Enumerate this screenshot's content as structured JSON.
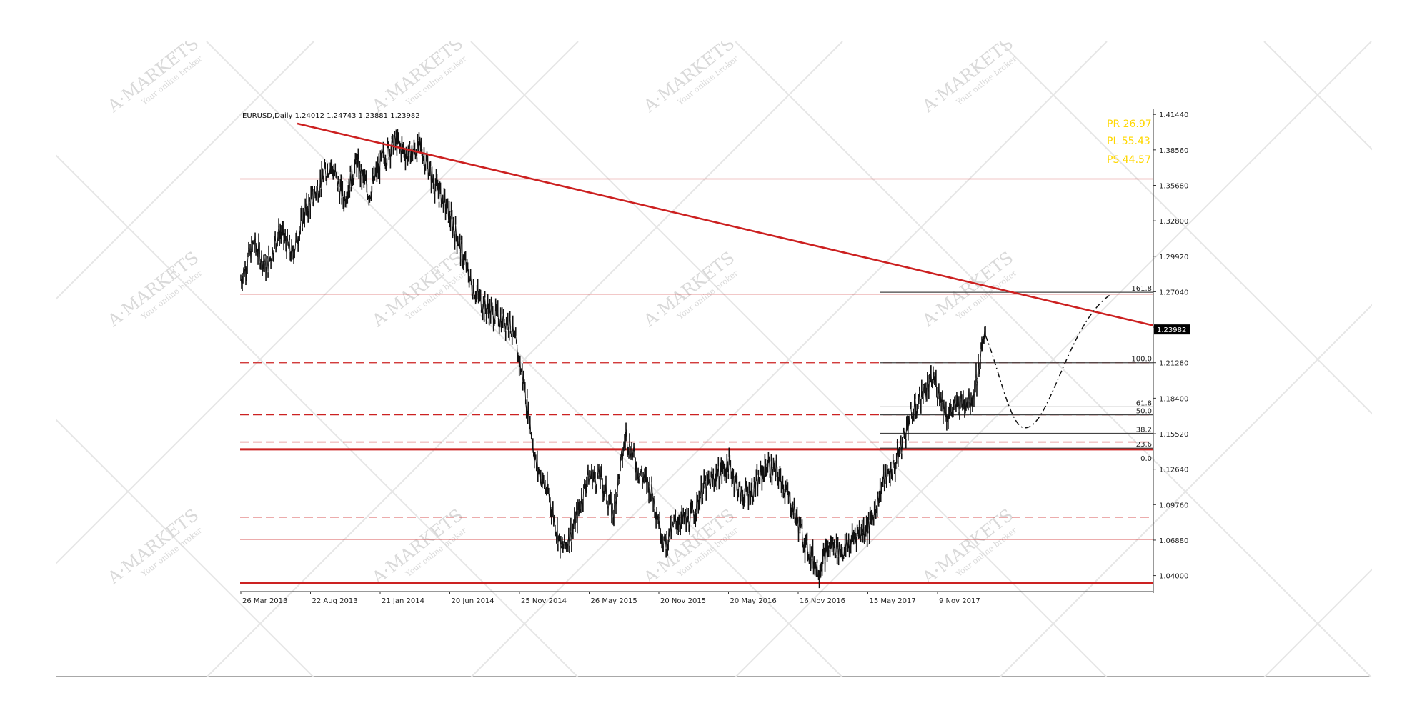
{
  "header": {
    "symbol_info": "EURUSD,Daily  1.24012  1.24743  1.23881  1.23982"
  },
  "watermark": {
    "brand": "A·MARKETS",
    "tagline": "Your online broker"
  },
  "stats": {
    "pr": "PR 26.97",
    "pl": "PL 55.43",
    "ps": "PS 44.57",
    "color": "#ffd700"
  },
  "colors": {
    "level_line": "#cc2222",
    "trendline": "#cc2020",
    "price": "#111111",
    "fib_line": "#444444"
  },
  "chart_data": {
    "type": "candlestick",
    "symbol": "EURUSD",
    "timeframe": "Daily",
    "ohlc_last": {
      "open": 1.24012,
      "high": 1.24743,
      "low": 1.23881,
      "close": 1.23982
    },
    "x_tick_labels": [
      "26 Mar 2013",
      "22 Aug 2013",
      "21 Jan 2014",
      "20 Jun 2014",
      "25 Nov 2014",
      "26 May 2015",
      "20 Nov 2015",
      "20 May 2016",
      "16 Nov 2016",
      "15 May 2017",
      "9 Nov 2017"
    ],
    "y_ticks": [
      1.4144,
      1.3856,
      1.3568,
      1.328,
      1.2992,
      1.2704,
      1.2416,
      1.2128,
      1.184,
      1.1552,
      1.1264,
      1.0976,
      1.0688,
      1.04
    ],
    "y_tick_labels": [
      "1.41440",
      "1.38560",
      "1.35680",
      "1.32800",
      "1.29920",
      "1.27040",
      "1.24160",
      "1.21280",
      "1.18400",
      "1.15520",
      "1.12640",
      "1.09760",
      "1.06880",
      "1.04000"
    ],
    "ylim": [
      1.027,
      1.418
    ],
    "current_price_label": "1.23982",
    "current_price": 1.23982,
    "price_path": [
      [
        "26 Mar 2013",
        1.28
      ],
      [
        "Apr 2013",
        1.31
      ],
      [
        "May 2013",
        1.29
      ],
      [
        "Jun 2013",
        1.32
      ],
      [
        "Jul 2013",
        1.3
      ],
      [
        "22 Aug 2013",
        1.335
      ],
      [
        "Sep 2013",
        1.355
      ],
      [
        "Oct 2013",
        1.375
      ],
      [
        "Nov 2013",
        1.345
      ],
      [
        "Dec 2013",
        1.375
      ],
      [
        "21 Jan 2014",
        1.35
      ],
      [
        "Feb 2014",
        1.378
      ],
      [
        "Mar 2014",
        1.392
      ],
      [
        "Apr 2014",
        1.382
      ],
      [
        "May 2014",
        1.388
      ],
      [
        "20 Jun 2014",
        1.36
      ],
      [
        "Aug 2014",
        1.34
      ],
      [
        "Sep 2014",
        1.31
      ],
      [
        "Oct 2014",
        1.275
      ],
      [
        "Oct 2014",
        1.258
      ],
      [
        "Nov 2014",
        1.25
      ],
      [
        "25 Nov 2014",
        1.245
      ],
      [
        "Jan 2015",
        1.2
      ],
      [
        "Feb 2015",
        1.13
      ],
      [
        "Mar 2015",
        1.105
      ],
      [
        "Mar 2015",
        1.06
      ],
      [
        "Apr 2015",
        1.08
      ],
      [
        "26 May 2015",
        1.12
      ],
      [
        "Jun 2015",
        1.12
      ],
      [
        "Jul 2015",
        1.09
      ],
      [
        "Aug 2015",
        1.155
      ],
      [
        "Sep 2015",
        1.125
      ],
      [
        "Oct 2015",
        1.11
      ],
      [
        "20 Nov 2015",
        1.065
      ],
      [
        "Dec 2015",
        1.085
      ],
      [
        "Jan 2016",
        1.085
      ],
      [
        "Feb 2016",
        1.11
      ],
      [
        "Mar 2016",
        1.12
      ],
      [
        "20 May 2016",
        1.13
      ],
      [
        "Jun 2016",
        1.105
      ],
      [
        "Jul 2016",
        1.11
      ],
      [
        "Aug 2016",
        1.13
      ],
      [
        "Sep 2016",
        1.12
      ],
      [
        "Oct 2016",
        1.095
      ],
      [
        "16 Nov 2016",
        1.065
      ],
      [
        "Dec 2016",
        1.045
      ],
      [
        "Jan 2017",
        1.065
      ],
      [
        "Feb 2017",
        1.06
      ],
      [
        "Mar 2017",
        1.075
      ],
      [
        "Apr 2017",
        1.08
      ],
      [
        "15 May 2017",
        1.115
      ],
      [
        "Jun 2017",
        1.13
      ],
      [
        "Jul 2017",
        1.165
      ],
      [
        "Aug 2017",
        1.185
      ],
      [
        "Sep 2017",
        1.2
      ],
      [
        "Oct 2017",
        1.17
      ],
      [
        "9 Nov 2017",
        1.18
      ],
      [
        "Dec 2017",
        1.185
      ],
      [
        "Jan 2018",
        1.235
      ]
    ],
    "projection": [
      [
        "Jan 2018",
        1.235
      ],
      [
        "Feb 2018",
        1.16
      ],
      [
        "May 2018",
        1.268
      ]
    ],
    "trendline": {
      "from": [
        "Mar 2013",
        1.407
      ],
      "to": [
        "Jun 2018",
        1.243
      ]
    },
    "horizontal_levels": [
      {
        "price": 1.362,
        "style": "solid"
      },
      {
        "price": 1.2685,
        "style": "solid"
      },
      {
        "price": 1.2128,
        "style": "dashed"
      },
      {
        "price": 1.1705,
        "style": "dashed"
      },
      {
        "price": 1.1485,
        "style": "dashed"
      },
      {
        "price": 1.1425,
        "style": "solid-bold"
      },
      {
        "price": 1.0875,
        "style": "dashed"
      },
      {
        "price": 1.0695,
        "style": "solid"
      },
      {
        "price": 1.034,
        "style": "solid-bold"
      }
    ],
    "fibonacci": {
      "labels": [
        "161.8",
        "100.0",
        "61.8",
        "50.0",
        "38.2",
        "23.6",
        "0.0"
      ],
      "prices": [
        1.27,
        1.2128,
        1.177,
        1.1705,
        1.1555,
        1.1435,
        1.132
      ]
    }
  }
}
